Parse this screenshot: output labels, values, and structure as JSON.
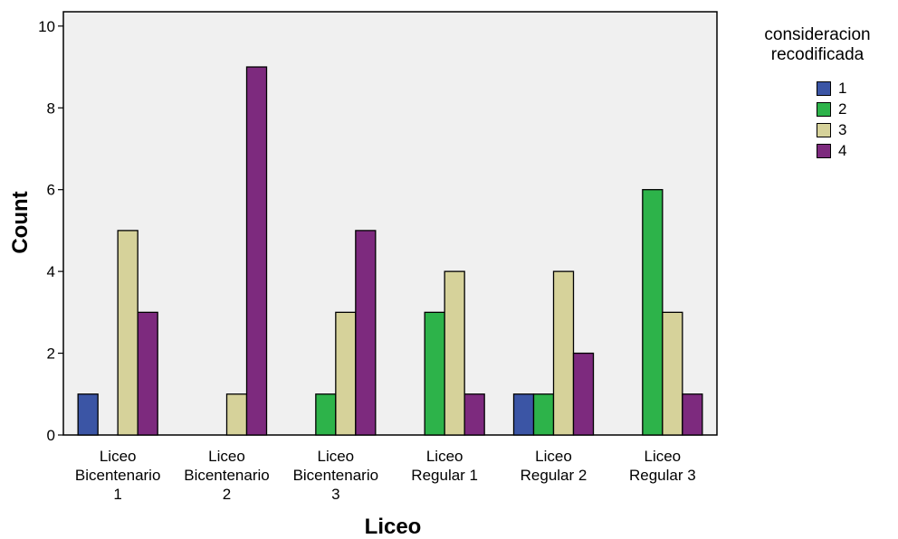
{
  "chart_data": {
    "type": "bar",
    "ylabel": "Count",
    "xlabel": "Liceo",
    "ylim": [
      0,
      10
    ],
    "yticks": [
      0,
      2,
      4,
      6,
      8,
      10
    ],
    "grid": false,
    "legend_position": "top-right",
    "legend_title_lines": [
      "consideracion",
      "recodificada"
    ],
    "categories": [
      [
        "Liceo",
        "Bicentenario",
        "1"
      ],
      [
        "Liceo",
        "Bicentenario",
        "2"
      ],
      [
        "Liceo",
        "Bicentenario",
        "3"
      ],
      [
        "Liceo",
        "Regular 1"
      ],
      [
        "Liceo",
        "Regular 2"
      ],
      [
        "Liceo",
        "Regular 3"
      ]
    ],
    "series": [
      {
        "name": "1",
        "color": "#3b55a5",
        "values": [
          1,
          0,
          0,
          0,
          1,
          0
        ]
      },
      {
        "name": "2",
        "color": "#2db34a",
        "values": [
          0,
          0,
          1,
          3,
          1,
          6
        ]
      },
      {
        "name": "3",
        "color": "#d6d29a",
        "values": [
          5,
          1,
          3,
          4,
          4,
          3
        ]
      },
      {
        "name": "4",
        "color": "#7d2a7e",
        "values": [
          3,
          9,
          5,
          1,
          2,
          1
        ]
      }
    ],
    "plot_background": "#f0f0f0"
  }
}
